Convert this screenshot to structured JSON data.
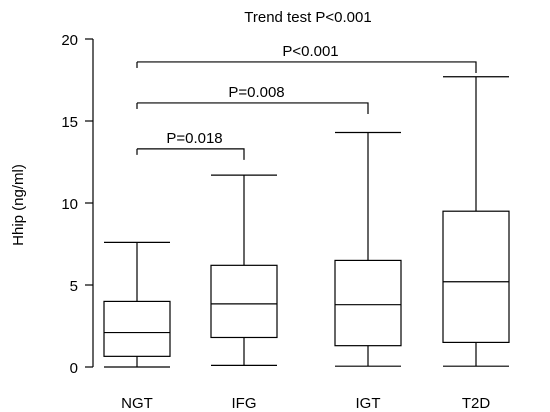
{
  "chart_data": {
    "type": "box",
    "title": "Trend test P<0.001",
    "xlabel": "",
    "ylabel": "Hhip (ng/ml)",
    "ylim": [
      0,
      20
    ],
    "yticks": [
      0,
      5,
      10,
      15,
      20
    ],
    "grid": false,
    "categories": [
      "NGT",
      "IFG",
      "IGT",
      "T2D"
    ],
    "boxes": [
      {
        "category": "NGT",
        "min": 0.0,
        "q1": 0.65,
        "median": 2.1,
        "q3": 4.0,
        "max": 7.6
      },
      {
        "category": "IFG",
        "min": 0.1,
        "q1": 1.8,
        "median": 3.85,
        "q3": 6.2,
        "max": 11.7
      },
      {
        "category": "IGT",
        "min": 0.05,
        "q1": 1.3,
        "median": 3.8,
        "q3": 6.5,
        "max": 14.3
      },
      {
        "category": "T2D",
        "min": 0.05,
        "q1": 1.5,
        "median": 5.2,
        "q3": 9.5,
        "max": 17.7
      }
    ],
    "comparisons": [
      {
        "from": "NGT",
        "to": "IFG",
        "label": "P=0.018",
        "y": 13.3
      },
      {
        "from": "NGT",
        "to": "IGT",
        "label": "P=0.008",
        "y": 16.1
      },
      {
        "from": "NGT",
        "to": "T2D",
        "label": "P<0.001",
        "y": 18.6
      }
    ]
  }
}
